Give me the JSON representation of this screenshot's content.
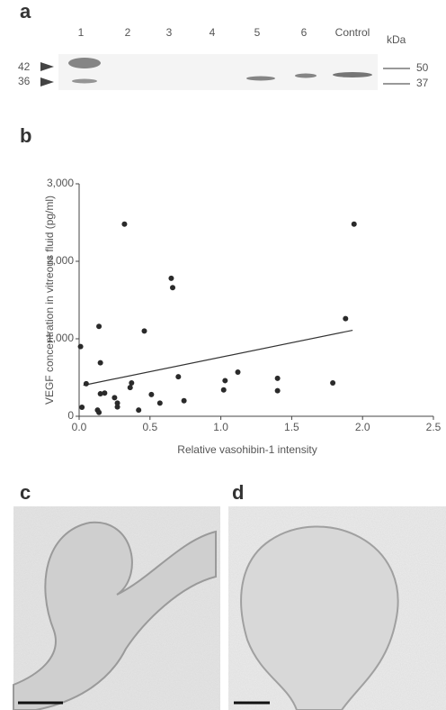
{
  "panels": {
    "a": "a",
    "b": "b",
    "c": "c",
    "d": "d"
  },
  "blot": {
    "lanes": [
      "1",
      "2",
      "3",
      "4",
      "5",
      "6",
      "Control"
    ],
    "unit": "kDa",
    "left_markers": [
      "42",
      "36"
    ],
    "right_markers": [
      "50",
      "37"
    ]
  },
  "chart_data": {
    "type": "scatter",
    "x_label": "Relative vasohibin-1 intensity",
    "y_label": "VEGF concentration in vitreous fluid (pg/ml)",
    "x": [
      0.01,
      0.02,
      0.05,
      0.13,
      0.14,
      0.14,
      0.15,
      0.15,
      0.18,
      0.25,
      0.27,
      0.27,
      0.32,
      0.36,
      0.37,
      0.42,
      0.46,
      0.51,
      0.57,
      0.65,
      0.66,
      0.7,
      0.74,
      1.02,
      1.03,
      1.12,
      1.4,
      1.4,
      1.79,
      1.88,
      1.94
    ],
    "values": [
      900,
      116,
      420,
      80,
      50,
      1160,
      690,
      290,
      300,
      240,
      170,
      120,
      2480,
      370,
      430,
      80,
      1100,
      280,
      170,
      1780,
      1660,
      510,
      200,
      340,
      460,
      570,
      490,
      330,
      430,
      1260,
      2480
    ],
    "color": "#2a2a2a",
    "trendline": {
      "x": [
        0.03,
        1.93
      ],
      "y": [
        400,
        1110
      ]
    },
    "xlim": [
      0,
      2.5
    ],
    "ylim": [
      0,
      3000
    ],
    "xticks": [
      {
        "value": 0,
        "label": "0.0"
      },
      0.5,
      {
        "value": 1,
        "label": "1.0"
      },
      1.5,
      {
        "value": 2,
        "label": "2.0"
      },
      2.5
    ],
    "yticks": [
      0,
      {
        "value": 1000,
        "label": "1,000"
      },
      {
        "value": 2000,
        "label": "2,000"
      },
      {
        "value": 3000,
        "label": "3,000"
      }
    ]
  }
}
